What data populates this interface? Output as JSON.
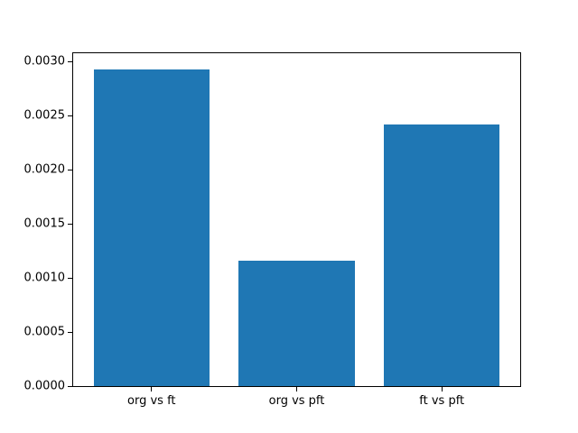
{
  "chart_data": {
    "type": "bar",
    "categories": [
      "org vs ft",
      "org vs pft",
      "ft vs pft"
    ],
    "values": [
      0.00293,
      0.00116,
      0.00242
    ],
    "title": "",
    "xlabel": "",
    "ylabel": "",
    "ylim": [
      0,
      0.003077
    ],
    "xlim": [
      -0.54,
      2.54
    ],
    "bar_width": 0.8,
    "yticks": [
      0.0,
      0.0005,
      0.001,
      0.0015,
      0.002,
      0.0025,
      0.003
    ],
    "ytick_labels": [
      "0.0000",
      "0.0005",
      "0.0010",
      "0.0015",
      "0.0020",
      "0.0025",
      "0.0030"
    ],
    "bar_color": "#1f77b4",
    "grid": false,
    "legend": null
  }
}
